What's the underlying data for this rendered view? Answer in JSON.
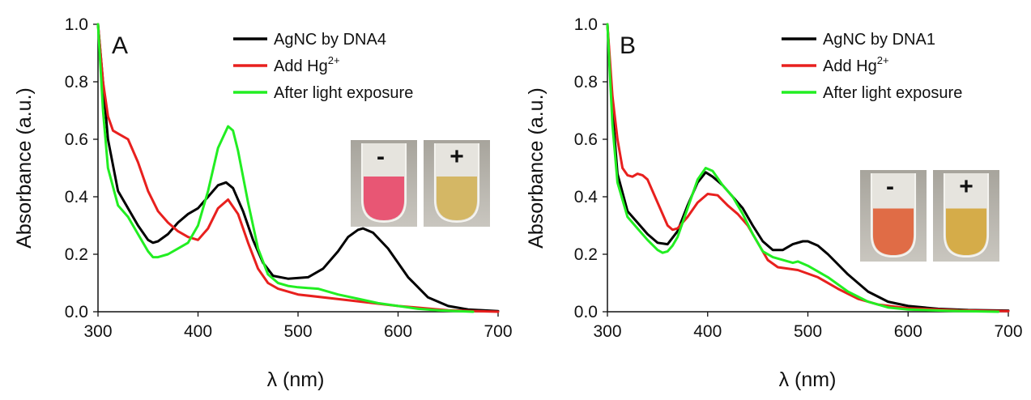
{
  "chart_data": [
    {
      "type": "line",
      "panel_label": "A",
      "xlabel": "λ (nm)",
      "ylabel": "Absorbance (a.u.)",
      "xlim": [
        300,
        700
      ],
      "ylim": [
        0,
        1.0
      ],
      "xticks": [
        "300",
        "400",
        "500",
        "600",
        "700"
      ],
      "yticks": [
        "0.0",
        "0.2",
        "0.4",
        "0.6",
        "0.8",
        "1.0"
      ],
      "legend_position": "top-right",
      "series": [
        {
          "name": "AgNC by DNA4",
          "color": "#000000",
          "x": [
            300,
            310,
            320,
            330,
            340,
            350,
            355,
            360,
            370,
            380,
            390,
            400,
            410,
            420,
            428,
            435,
            445,
            455,
            465,
            475,
            490,
            510,
            525,
            540,
            550,
            560,
            565,
            575,
            590,
            610,
            630,
            650,
            670,
            700
          ],
          "y": [
            1.0,
            0.6,
            0.42,
            0.36,
            0.3,
            0.25,
            0.24,
            0.245,
            0.27,
            0.31,
            0.34,
            0.36,
            0.4,
            0.44,
            0.45,
            0.43,
            0.35,
            0.25,
            0.17,
            0.125,
            0.115,
            0.12,
            0.15,
            0.21,
            0.26,
            0.285,
            0.29,
            0.275,
            0.22,
            0.12,
            0.05,
            0.02,
            0.008,
            0.002
          ]
        },
        {
          "name": "Add Hg",
          "name_sup": "2+",
          "color": "#e8201e",
          "x": [
            300,
            305,
            310,
            315,
            320,
            330,
            340,
            350,
            360,
            370,
            380,
            390,
            400,
            410,
            420,
            430,
            440,
            450,
            460,
            470,
            480,
            500,
            550,
            600,
            650,
            700
          ],
          "y": [
            1.0,
            0.8,
            0.68,
            0.63,
            0.62,
            0.6,
            0.52,
            0.42,
            0.35,
            0.31,
            0.28,
            0.26,
            0.25,
            0.29,
            0.36,
            0.39,
            0.34,
            0.24,
            0.15,
            0.1,
            0.08,
            0.06,
            0.04,
            0.02,
            0.005,
            0.0
          ]
        },
        {
          "name": "After light exposure",
          "color": "#22ee22",
          "x": [
            300,
            305,
            310,
            320,
            330,
            340,
            350,
            355,
            360,
            370,
            380,
            390,
            400,
            410,
            420,
            430,
            435,
            440,
            450,
            460,
            470,
            480,
            490,
            500,
            520,
            540,
            560,
            580,
            600,
            620,
            640,
            675
          ],
          "y": [
            1.0,
            0.7,
            0.5,
            0.37,
            0.33,
            0.27,
            0.21,
            0.19,
            0.19,
            0.2,
            0.22,
            0.24,
            0.3,
            0.42,
            0.57,
            0.645,
            0.63,
            0.56,
            0.38,
            0.22,
            0.13,
            0.1,
            0.09,
            0.085,
            0.08,
            0.06,
            0.045,
            0.03,
            0.02,
            0.01,
            0.005,
            0.0
          ]
        }
      ],
      "inset": {
        "left_sign": "-",
        "right_sign": "+",
        "left_color": "#e84a6a",
        "right_color": "#d3b35a"
      }
    },
    {
      "type": "line",
      "panel_label": "B",
      "xlabel": "λ (nm)",
      "ylabel": "Absorbance (a.u.)",
      "xlim": [
        300,
        700
      ],
      "ylim": [
        0,
        1.0
      ],
      "xticks": [
        "300",
        "400",
        "500",
        "600",
        "700"
      ],
      "yticks": [
        "0.0",
        "0.2",
        "0.4",
        "0.6",
        "0.8",
        "1.0"
      ],
      "legend_position": "top-right",
      "series": [
        {
          "name": "AgNC by DNA1",
          "color": "#000000",
          "x": [
            300,
            305,
            310,
            320,
            330,
            340,
            350,
            360,
            370,
            380,
            390,
            398,
            405,
            415,
            425,
            435,
            445,
            455,
            465,
            475,
            485,
            495,
            500,
            510,
            520,
            540,
            560,
            580,
            600,
            630,
            660,
            700
          ],
          "y": [
            1.0,
            0.7,
            0.48,
            0.35,
            0.31,
            0.27,
            0.24,
            0.235,
            0.28,
            0.37,
            0.45,
            0.485,
            0.47,
            0.44,
            0.4,
            0.36,
            0.3,
            0.245,
            0.215,
            0.215,
            0.235,
            0.245,
            0.245,
            0.23,
            0.2,
            0.13,
            0.07,
            0.035,
            0.02,
            0.01,
            0.006,
            0.004
          ]
        },
        {
          "name": "Add Hg",
          "name_sup": "2+",
          "color": "#e8201e",
          "x": [
            300,
            305,
            310,
            315,
            320,
            325,
            330,
            335,
            340,
            350,
            360,
            365,
            370,
            380,
            390,
            400,
            410,
            420,
            430,
            440,
            450,
            460,
            470,
            490,
            510,
            530,
            550,
            570,
            600,
            650,
            700
          ],
          "y": [
            1.0,
            0.75,
            0.6,
            0.5,
            0.475,
            0.47,
            0.48,
            0.475,
            0.46,
            0.38,
            0.3,
            0.285,
            0.29,
            0.33,
            0.38,
            0.41,
            0.405,
            0.37,
            0.34,
            0.3,
            0.24,
            0.18,
            0.155,
            0.145,
            0.12,
            0.08,
            0.045,
            0.025,
            0.012,
            0.005,
            0.002
          ]
        },
        {
          "name": "After light exposure",
          "color": "#22ee22",
          "x": [
            300,
            305,
            310,
            320,
            330,
            340,
            350,
            355,
            360,
            365,
            370,
            380,
            390,
            398,
            405,
            415,
            425,
            435,
            445,
            455,
            465,
            475,
            485,
            490,
            500,
            520,
            540,
            560,
            580,
            600,
            640,
            690
          ],
          "y": [
            1.0,
            0.65,
            0.45,
            0.33,
            0.29,
            0.25,
            0.215,
            0.205,
            0.21,
            0.23,
            0.26,
            0.36,
            0.46,
            0.5,
            0.49,
            0.44,
            0.4,
            0.34,
            0.27,
            0.21,
            0.19,
            0.18,
            0.17,
            0.175,
            0.16,
            0.12,
            0.07,
            0.035,
            0.015,
            0.008,
            0.003,
            0.0
          ]
        }
      ],
      "inset": {
        "left_sign": "-",
        "right_sign": "+",
        "left_color": "#e06238",
        "right_color": "#d4a73c"
      }
    }
  ]
}
